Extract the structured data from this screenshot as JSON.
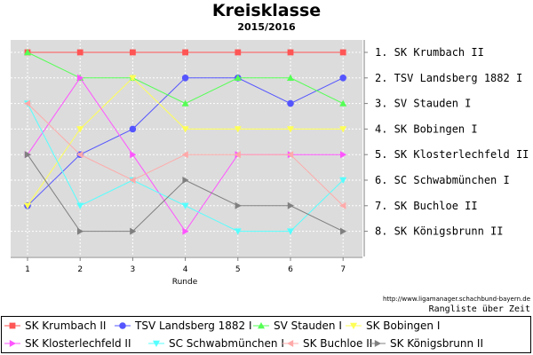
{
  "chart_data": {
    "type": "line",
    "title": "Kreisklasse",
    "subtitle": "2015/2016",
    "xlabel": "Runde",
    "x": [
      1,
      2,
      3,
      4,
      5,
      6,
      7
    ],
    "ylim": [
      1,
      8
    ],
    "y_inverted": true,
    "grid": true,
    "legend_position": "bottom",
    "right_axis_labels": [
      "1. SK Krumbach II",
      "2. TSV Landsberg 1882 I",
      "3. SV Stauden I",
      "4. SK Bobingen I",
      "5. SK Klosterlechfeld II",
      "6. SC Schwabmünchen I",
      "7. SK Buchloe II",
      "8. SK Königsbrunn II"
    ],
    "series": [
      {
        "name": "SK Krumbach II",
        "color": "#ff5555",
        "marker": "square",
        "values": [
          1,
          1,
          1,
          1,
          1,
          1,
          1
        ]
      },
      {
        "name": "TSV Landsberg 1882 I",
        "color": "#5555ff",
        "marker": "circle",
        "values": [
          7,
          5,
          4,
          2,
          2,
          3,
          2
        ]
      },
      {
        "name": "SV Stauden I",
        "color": "#55ff55",
        "marker": "triangle-up",
        "values": [
          1,
          2,
          2,
          3,
          2,
          2,
          3
        ]
      },
      {
        "name": "SK Bobingen I",
        "color": "#ffff55",
        "marker": "triangle-down",
        "values": [
          7,
          4,
          2,
          4,
          4,
          4,
          4
        ]
      },
      {
        "name": "SK Klosterlechfeld II",
        "color": "#ff55ff",
        "marker": "triangle-right",
        "values": [
          5,
          2,
          5,
          8,
          5,
          5,
          5
        ]
      },
      {
        "name": "SC Schwabmünchen I",
        "color": "#55ffff",
        "marker": "triangle-down",
        "values": [
          3,
          7,
          6,
          7,
          8,
          8,
          6
        ]
      },
      {
        "name": "SK Buchloe II",
        "color": "#ffaaaa",
        "marker": "triangle-left",
        "values": [
          3,
          5,
          6,
          5,
          5,
          5,
          7
        ]
      },
      {
        "name": "SK Königsbrunn II",
        "color": "#808080",
        "marker": "triangle-right",
        "values": [
          5,
          8,
          8,
          6,
          7,
          7,
          8
        ]
      }
    ]
  },
  "source_url": "http://www.ligamanager.schachbund-bayern.de",
  "ranking_caption": "Rangliste über Zeit"
}
